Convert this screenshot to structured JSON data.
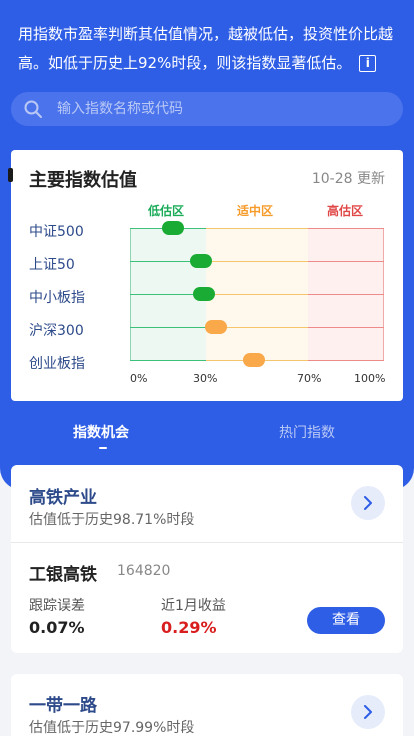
{
  "intro": {
    "text": "用指数市盈率判断其估值情况，越被低估，投资性价比越高。如低于历史上92%时段，则该指数显著低估。",
    "info_icon": "info-icon"
  },
  "search": {
    "placeholder": "输入指数名称或代码",
    "icon": "search-icon"
  },
  "valuation_card": {
    "title": "主要指数估值",
    "updated": "10-28 更新",
    "zones": [
      "低估区",
      "适中区",
      "高估区"
    ],
    "zone_colors": [
      "#1aab59",
      "#f59b2a",
      "#e04848"
    ],
    "rows": [
      {
        "name": "中证500",
        "percentile": 0.17,
        "status": "low"
      },
      {
        "name": "上证50",
        "percentile": 0.28,
        "status": "low"
      },
      {
        "name": "中小板指",
        "percentile": 0.29,
        "status": "low"
      },
      {
        "name": "沪深300",
        "percentile": 0.34,
        "status": "mid"
      },
      {
        "name": "创业板指",
        "percentile": 0.49,
        "status": "mid"
      }
    ],
    "axis_ticks": [
      "0%",
      "30%",
      "70%",
      "100%"
    ],
    "colors": {
      "low_pill": "#1aab34",
      "mid_pill": "#f9a84a",
      "low_line": "#3cc07a",
      "mid_line": "#f5c56e",
      "high_line": "#ee8a8a"
    }
  },
  "tabs": [
    {
      "label": "指数机会",
      "active": true
    },
    {
      "label": "热门指数",
      "active": false
    }
  ],
  "topics": [
    {
      "title": "高铁产业",
      "subtitle": "估值低于历史98.71%时段",
      "fund": {
        "name": "工银高铁",
        "code": "164820",
        "metrics": [
          {
            "label": "跟踪误差",
            "value": "0.07%",
            "color": "#222222"
          },
          {
            "label": "近1月收益",
            "value": "0.29%",
            "color": "#d81e1e"
          }
        ],
        "button": "查看"
      }
    },
    {
      "title": "一带一路",
      "subtitle": "估值低于历史97.99%时段"
    }
  ],
  "accent_color": "#2f5ee6"
}
